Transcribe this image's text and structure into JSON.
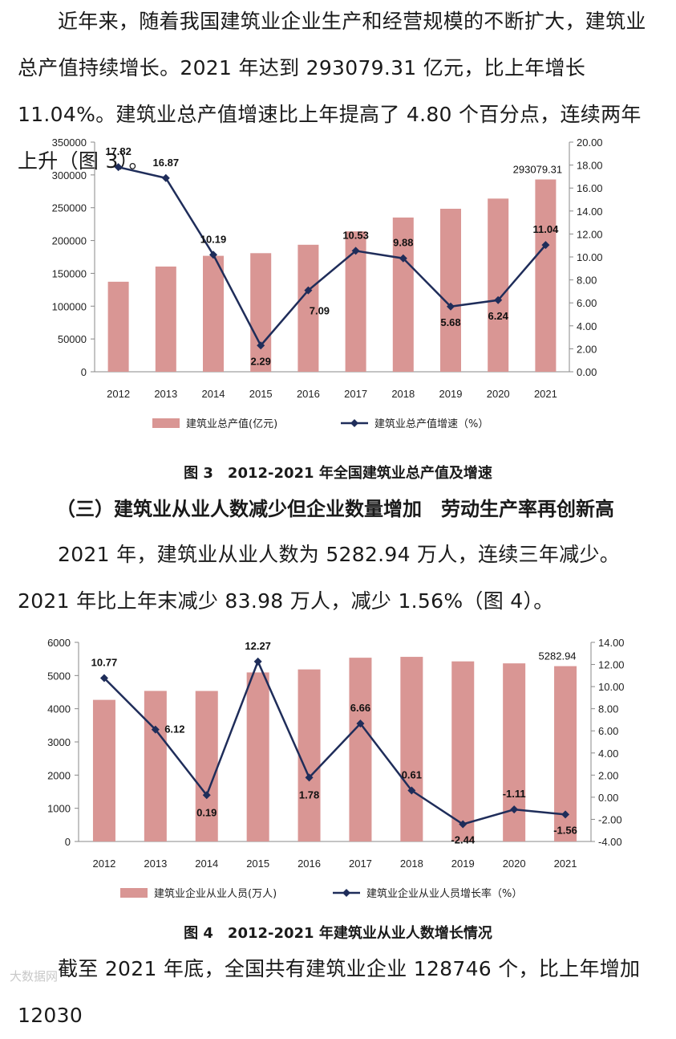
{
  "paragraphs": {
    "p1": "近年来，随着我国建筑业企业生产和经营规模的不断扩大，建筑业总产值持续增长。2021 年达到 293079.31 亿元，比上年增长 11.04%。建筑业总产值增速比上年提高了 4.80 个百分点，连续两年上升（图 3）。",
    "heading": "（三）建筑业从业人数减少但企业数量增加　劳动生产率再创新高",
    "p2": "2021 年，建筑业从业人数为 5282.94 万人，连续三年减少。2021 年比上年末减少 83.98 万人，减少 1.56%（图 4）。",
    "p3": "截至 2021 年底，全国共有建筑业企业 128746 个，比上年增加 12030"
  },
  "captions": {
    "fig3": "图 3　2012-2021 年全国建筑业总产值及增速",
    "fig4": "图 4　2012-2021 年建筑业从业人数增长情况"
  },
  "watermark": "大数据网",
  "colors": {
    "bar": "#d99694",
    "line": "#1f2d5a"
  },
  "chart_data": [
    {
      "type": "bar",
      "categories": [
        "2012",
        "2013",
        "2014",
        "2015",
        "2016",
        "2017",
        "2018",
        "2019",
        "2020",
        "2021"
      ],
      "series": [
        {
          "name": "建筑业总产值(亿元)",
          "type": "bar",
          "axis": "left",
          "values": [
            137218,
            160366,
            176713,
            180757,
            193567,
            213944,
            235086,
            248443,
            263947,
            293079.31
          ]
        },
        {
          "name": "建筑业总产值增速（%）",
          "type": "line",
          "axis": "right",
          "values": [
            17.82,
            16.87,
            10.19,
            2.29,
            7.09,
            10.53,
            9.88,
            5.68,
            6.24,
            11.04
          ]
        }
      ],
      "bar_label": "293079.31",
      "ylim": [
        0,
        350000
      ],
      "y_ticks": [
        "0",
        "50000",
        "100000",
        "150000",
        "200000",
        "250000",
        "300000",
        "350000"
      ],
      "y2lim": [
        0,
        20
      ],
      "y2_ticks": [
        "0.00",
        "2.00",
        "4.00",
        "6.00",
        "8.00",
        "10.00",
        "12.00",
        "14.00",
        "16.00",
        "18.00",
        "20.00"
      ],
      "line_labels": [
        "17.82",
        "16.87",
        "10.19",
        "2.29",
        "7.09",
        "10.53",
        "9.88",
        "5.68",
        "6.24",
        "11.04"
      ],
      "legend": "bottom"
    },
    {
      "type": "bar",
      "categories": [
        "2012",
        "2013",
        "2014",
        "2015",
        "2016",
        "2017",
        "2018",
        "2019",
        "2020",
        "2021"
      ],
      "series": [
        {
          "name": "建筑业企业从业人员(万人)",
          "type": "bar",
          "axis": "left",
          "values": [
            4267,
            4537,
            4535,
            5094,
            5185,
            5537,
            5563,
            5427,
            5367,
            5282.94
          ]
        },
        {
          "name": "建筑业企业从业人员增长率（%）",
          "type": "line",
          "axis": "right",
          "values": [
            10.77,
            6.12,
            0.19,
            12.27,
            1.78,
            6.66,
            0.61,
            -2.44,
            -1.11,
            -1.56
          ]
        }
      ],
      "bar_label": "5282.94",
      "ylim": [
        0,
        6000
      ],
      "y_ticks": [
        "0",
        "1000",
        "2000",
        "3000",
        "4000",
        "5000",
        "6000"
      ],
      "y2lim": [
        -4,
        14
      ],
      "y2_ticks": [
        "-4.00",
        "-2.00",
        "0.00",
        "2.00",
        "4.00",
        "6.00",
        "8.00",
        "10.00",
        "12.00",
        "14.00"
      ],
      "line_labels": [
        "10.77",
        "6.12",
        "0.19",
        "12.27",
        "1.78",
        "6.66",
        "0.61",
        "-2.44",
        "-1.11",
        "-1.56"
      ],
      "legend": "bottom"
    }
  ]
}
